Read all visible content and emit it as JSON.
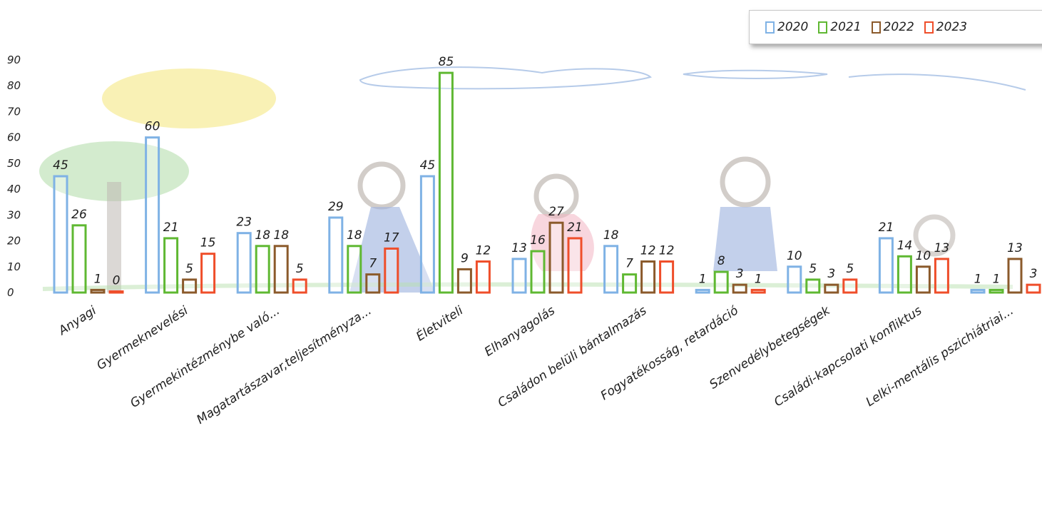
{
  "chart_data": {
    "type": "bar",
    "categories": [
      "Anyagi",
      "Gyermeknevelési",
      "Gyermekintézménybe való...",
      "Magatartászavar,teljesítményza...",
      "Életviteli",
      "Elhanyagolás",
      "Családon belüli bántalmazás",
      "Fogyatékosság, retardáció",
      "Szenvedélybetegségek",
      "Családi-kapcsolati konfliktus",
      "Lelki-mentális pszichiátriai..."
    ],
    "series": [
      {
        "name": "2020",
        "color": "#7fb2e5",
        "values": [
          45,
          60,
          23,
          29,
          45,
          13,
          18,
          1,
          10,
          21,
          1
        ]
      },
      {
        "name": "2021",
        "color": "#5fb832",
        "values": [
          26,
          21,
          18,
          18,
          85,
          16,
          7,
          8,
          5,
          14,
          1
        ]
      },
      {
        "name": "2022",
        "color": "#8b5a2b",
        "values": [
          1,
          5,
          18,
          7,
          9,
          27,
          12,
          3,
          3,
          10,
          13
        ]
      },
      {
        "name": "2023",
        "color": "#ef4e2a",
        "values": [
          0,
          15,
          5,
          17,
          12,
          21,
          12,
          1,
          5,
          13,
          3
        ]
      }
    ],
    "y_ticks": [
      "0",
      "10",
      "20",
      "30",
      "40",
      "50",
      "60",
      "70",
      "80",
      "90"
    ],
    "ylim": [
      0,
      90
    ],
    "title": "",
    "xlabel": "",
    "ylabel": "",
    "grid": false,
    "legend_position": "top-right",
    "data_labels": true
  },
  "legend": [
    {
      "label": "2020",
      "color": "#7fb2e5"
    },
    {
      "label": "2021",
      "color": "#5fb832"
    },
    {
      "label": "2022",
      "color": "#8b5a2b"
    },
    {
      "label": "2023",
      "color": "#ef4e2a"
    }
  ]
}
